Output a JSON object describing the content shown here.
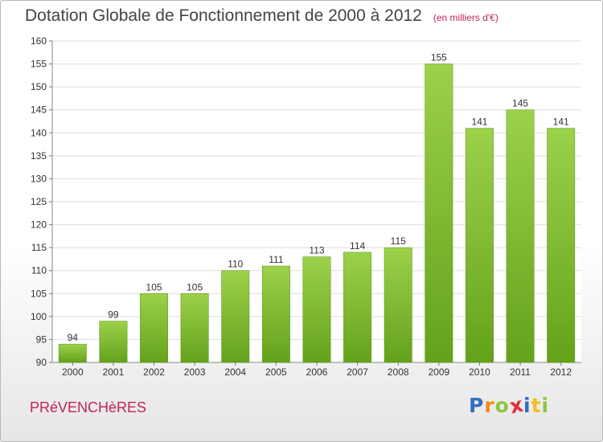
{
  "chart_data": {
    "type": "bar",
    "title": "Dotation Globale de Fonctionnement de 2000 à 2012",
    "unit_note": "(en milliers d'€)",
    "categories": [
      "2000",
      "2001",
      "2002",
      "2003",
      "2004",
      "2005",
      "2006",
      "2007",
      "2008",
      "2009",
      "2010",
      "2011",
      "2012"
    ],
    "values": [
      94,
      99,
      105,
      105,
      110,
      111,
      113,
      114,
      115,
      155,
      141,
      145,
      141
    ],
    "ylim": [
      90,
      160
    ],
    "yticks": [
      90,
      95,
      100,
      105,
      110,
      115,
      120,
      125,
      130,
      135,
      140,
      145,
      150,
      155,
      160
    ],
    "xlabel": "",
    "ylabel": "",
    "grid": true,
    "bar_color_top": "#9cd14a",
    "bar_color_bottom": "#64a21c"
  },
  "footer": {
    "commune": "PRéVENCHèRES",
    "logo_letters": [
      {
        "ch": "P",
        "color": "#2f6fc0"
      },
      {
        "ch": "r",
        "color": "#f08a1c"
      },
      {
        "ch": "o",
        "color": "#8bc53f"
      },
      {
        "ch": "x",
        "color": "#e0303a"
      },
      {
        "ch": "i",
        "color": "#2f6fc0"
      },
      {
        "ch": "t",
        "color": "#f0c020"
      },
      {
        "ch": "i",
        "color": "#8bc53f"
      }
    ]
  }
}
